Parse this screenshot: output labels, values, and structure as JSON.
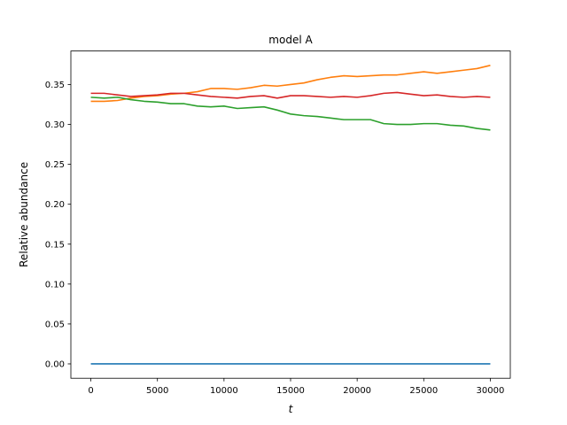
{
  "chart_data": {
    "type": "line",
    "title": "model A",
    "xlabel": "t",
    "ylabel": "Relative abundance",
    "xlim": [
      -1500,
      31500
    ],
    "ylim": [
      -0.018,
      0.392
    ],
    "x_ticks": [
      0,
      5000,
      10000,
      15000,
      20000,
      25000,
      30000
    ],
    "y_ticks": [
      0.0,
      0.05,
      0.1,
      0.15,
      0.2,
      0.25,
      0.3,
      0.35
    ],
    "grid": false,
    "legend": "none",
    "series": [
      {
        "color": "#1f77b4",
        "x": [
          0,
          30000
        ],
        "y": [
          0.0,
          0.0
        ]
      },
      {
        "color": "#ff7f0e",
        "x": [
          0,
          1000,
          2000,
          3000,
          4000,
          5000,
          6000,
          7000,
          8000,
          9000,
          10000,
          11000,
          12000,
          13000,
          14000,
          15000,
          16000,
          17000,
          18000,
          19000,
          20000,
          21000,
          22000,
          23000,
          24000,
          25000,
          26000,
          27000,
          28000,
          29000,
          30000
        ],
        "y": [
          0.329,
          0.329,
          0.33,
          0.333,
          0.335,
          0.336,
          0.338,
          0.339,
          0.341,
          0.345,
          0.345,
          0.344,
          0.346,
          0.349,
          0.348,
          0.35,
          0.352,
          0.356,
          0.359,
          0.361,
          0.36,
          0.361,
          0.362,
          0.362,
          0.364,
          0.366,
          0.364,
          0.366,
          0.368,
          0.37,
          0.374
        ]
      },
      {
        "color": "#d62728",
        "x": [
          0,
          1000,
          2000,
          3000,
          4000,
          5000,
          6000,
          7000,
          8000,
          9000,
          10000,
          11000,
          12000,
          13000,
          14000,
          15000,
          16000,
          17000,
          18000,
          19000,
          20000,
          21000,
          22000,
          23000,
          24000,
          25000,
          26000,
          27000,
          28000,
          29000,
          30000
        ],
        "y": [
          0.339,
          0.339,
          0.337,
          0.335,
          0.336,
          0.337,
          0.339,
          0.339,
          0.337,
          0.335,
          0.334,
          0.333,
          0.335,
          0.336,
          0.333,
          0.336,
          0.336,
          0.335,
          0.334,
          0.335,
          0.334,
          0.336,
          0.339,
          0.34,
          0.338,
          0.336,
          0.337,
          0.335,
          0.334,
          0.335,
          0.334
        ]
      },
      {
        "color": "#2ca02c",
        "x": [
          0,
          1000,
          2000,
          3000,
          4000,
          5000,
          6000,
          7000,
          8000,
          9000,
          10000,
          11000,
          12000,
          13000,
          14000,
          15000,
          16000,
          17000,
          18000,
          19000,
          20000,
          21000,
          22000,
          23000,
          24000,
          25000,
          26000,
          27000,
          28000,
          29000,
          30000
        ],
        "y": [
          0.334,
          0.333,
          0.334,
          0.331,
          0.329,
          0.328,
          0.326,
          0.326,
          0.323,
          0.322,
          0.323,
          0.32,
          0.321,
          0.322,
          0.318,
          0.313,
          0.311,
          0.31,
          0.308,
          0.306,
          0.306,
          0.306,
          0.301,
          0.3,
          0.3,
          0.301,
          0.301,
          0.299,
          0.298,
          0.295,
          0.293
        ]
      }
    ]
  }
}
